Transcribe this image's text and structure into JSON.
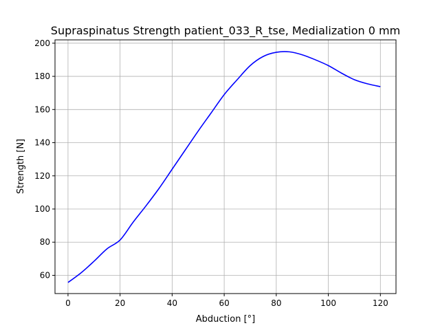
{
  "chart_data": {
    "type": "line",
    "title": "Supraspinatus Strength patient_033_R_tse, Medialization 0 mm",
    "xlabel": "Abduction [°]",
    "ylabel": "Strength [N]",
    "xlim": [
      -5,
      126
    ],
    "ylim": [
      49,
      202
    ],
    "xticks": [
      0,
      20,
      40,
      60,
      80,
      100,
      120
    ],
    "yticks": [
      60,
      80,
      100,
      120,
      140,
      160,
      180,
      200
    ],
    "grid": true,
    "series": [
      {
        "color": "#0000ff",
        "x": [
          0,
          5,
          10,
          15,
          20,
          25,
          30,
          35,
          40,
          45,
          50,
          55,
          60,
          65,
          70,
          75,
          80,
          85,
          90,
          95,
          100,
          105,
          110,
          115,
          120
        ],
        "y": [
          55.7,
          61.5,
          68.5,
          76.0,
          81.3,
          92.0,
          102.0,
          112.5,
          124.0,
          135.5,
          147.0,
          158.0,
          169.0,
          178.0,
          186.5,
          192.0,
          194.5,
          194.8,
          193.0,
          190.0,
          186.5,
          182.0,
          178.0,
          175.5,
          173.8
        ]
      }
    ]
  }
}
